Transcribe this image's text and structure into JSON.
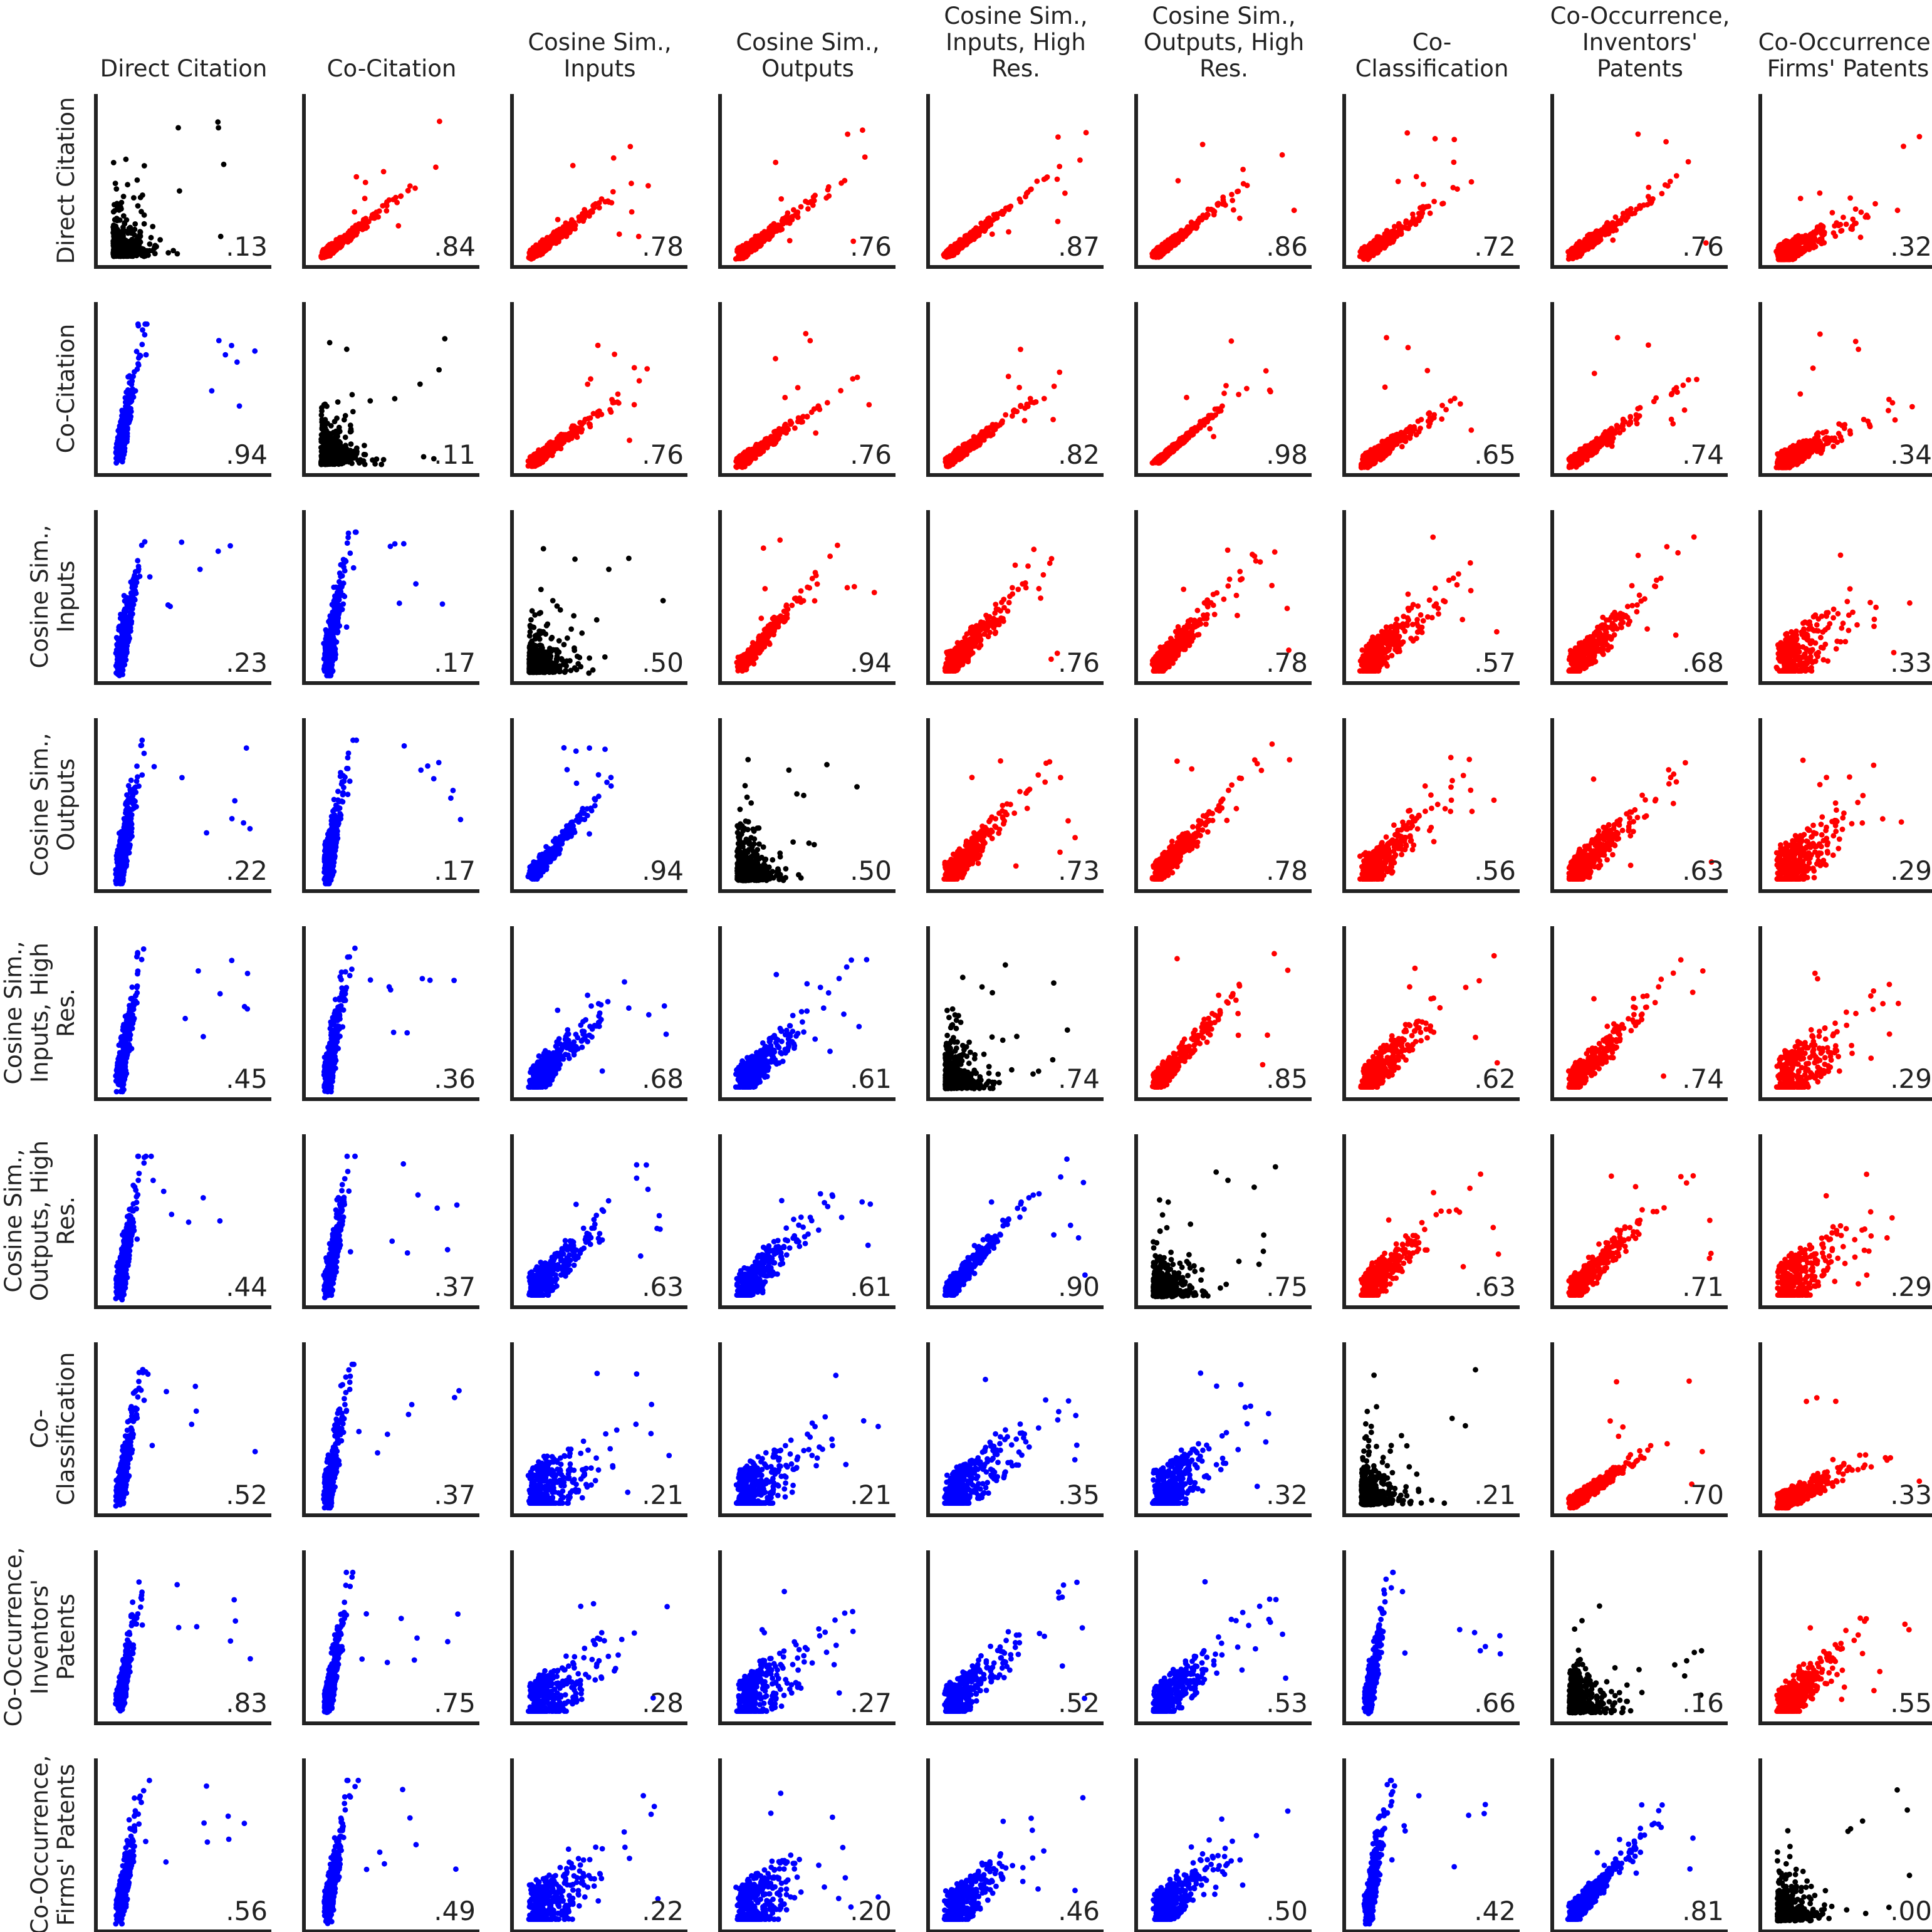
{
  "chart_data": {
    "type": "scatter",
    "variables": [
      "Direct Citation",
      "Co-Citation",
      "Cosine Sim., Inputs",
      "Cosine Sim., Outputs",
      "Cosine Sim., Inputs, High Res.",
      "Cosine Sim., Outputs, High Res.",
      "Co-Classification",
      "Co-Occurrence, Inventors' Patents",
      "Co-Occurrence, Firms' Patents"
    ],
    "column_labels": [
      [
        "Direct Citation"
      ],
      [
        "Co-Citation"
      ],
      [
        "Cosine Sim.,",
        "Inputs"
      ],
      [
        "Cosine Sim.,",
        "Outputs"
      ],
      [
        "Cosine Sim.,",
        "Inputs, High",
        "Res."
      ],
      [
        "Cosine Sim.,",
        "Outputs, High",
        "Res."
      ],
      [
        "Co-",
        "Classification"
      ],
      [
        "Co-Occurrence,",
        "Inventors'",
        "Patents"
      ],
      [
        "Co-Occurrence,",
        "Firms' Patents"
      ]
    ],
    "row_labels": [
      [
        "Direct Citation"
      ],
      [
        "Co-Citation"
      ],
      [
        "Cosine Sim.,",
        "Inputs"
      ],
      [
        "Cosine Sim.,",
        "Outputs"
      ],
      [
        "Cosine Sim.,",
        "Inputs, High",
        "Res."
      ],
      [
        "Cosine Sim.,",
        "Outputs, High",
        "Res."
      ],
      [
        "Co-",
        "Classification"
      ],
      [
        "Co-Occurrence,",
        "Inventors'",
        "Patents"
      ],
      [
        "Co-Occurrence,",
        "Firms' Patents"
      ]
    ],
    "cell_values": [
      [
        ".13",
        ".84",
        ".78",
        ".76",
        ".87",
        ".86",
        ".72",
        ".76",
        ".32"
      ],
      [
        ".94",
        ".11",
        ".76",
        ".76",
        ".82",
        ".98",
        ".65",
        ".74",
        ".34"
      ],
      [
        ".23",
        ".17",
        ".50",
        ".94",
        ".76",
        ".78",
        ".57",
        ".68",
        ".33"
      ],
      [
        ".22",
        ".17",
        ".94",
        ".50",
        ".73",
        ".78",
        ".56",
        ".63",
        ".29"
      ],
      [
        ".45",
        ".36",
        ".68",
        ".61",
        ".74",
        ".85",
        ".62",
        ".74",
        ".29"
      ],
      [
        ".44",
        ".37",
        ".63",
        ".61",
        ".90",
        ".75",
        ".63",
        ".71",
        ".29"
      ],
      [
        ".52",
        ".37",
        ".21",
        ".21",
        ".35",
        ".32",
        ".21",
        ".70",
        ".33"
      ],
      [
        ".83",
        ".75",
        ".28",
        ".27",
        ".52",
        ".53",
        ".66",
        ".16",
        ".55"
      ],
      [
        ".56",
        ".49",
        ".22",
        ".20",
        ".46",
        ".50",
        ".42",
        ".81",
        ".00"
      ]
    ],
    "colors": {
      "upper": "#ff0000",
      "lower": "#0000ff",
      "diagonal": "#000000",
      "axis": "#222222"
    }
  }
}
